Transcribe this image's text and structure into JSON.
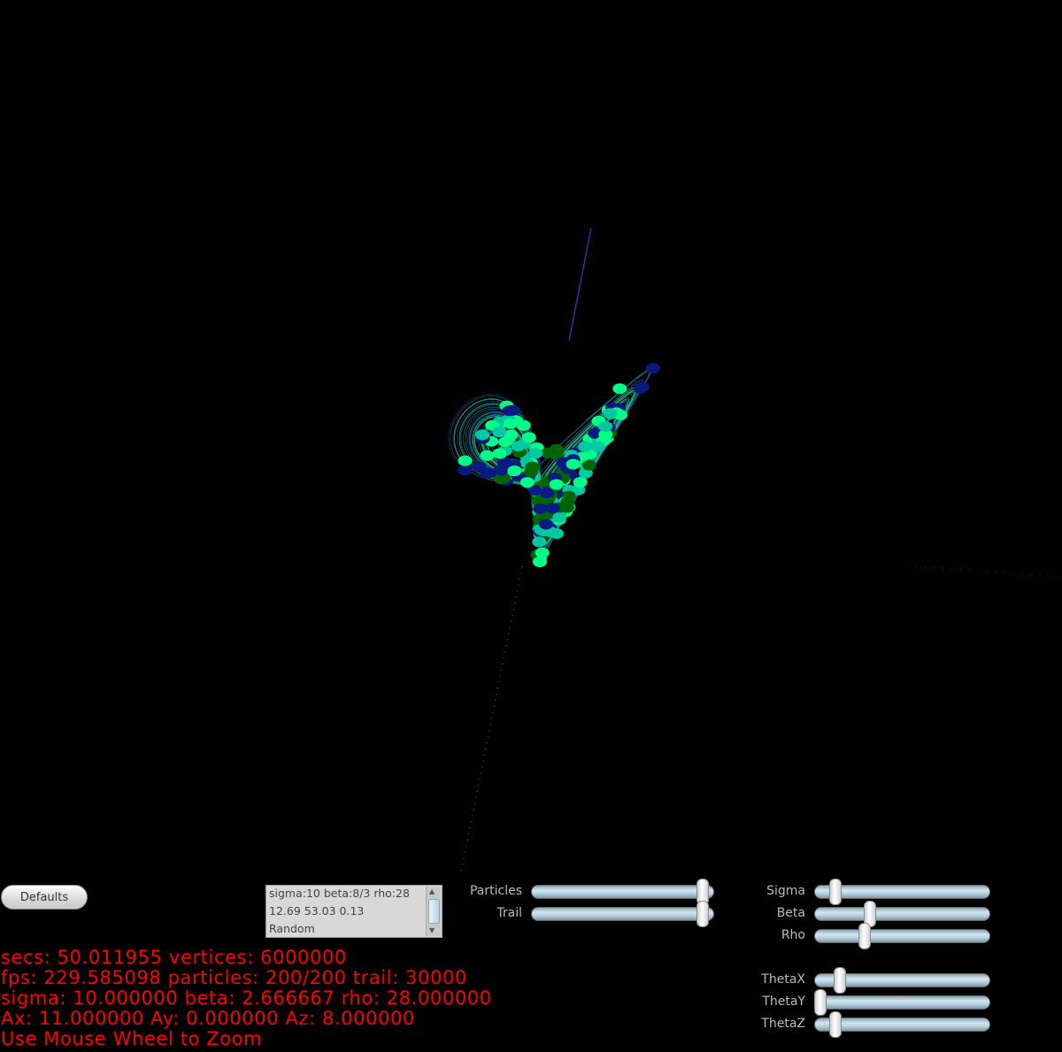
{
  "controls": {
    "defaults_label": "Defaults",
    "presets": [
      "sigma:10 beta:8/3 rho:28",
      "12.69 53.03 0.13",
      "Random"
    ],
    "sliders_left": [
      {
        "label": "Particles",
        "value": 0.97
      },
      {
        "label": "Trail",
        "value": 0.97
      }
    ],
    "sliders_params": [
      {
        "label": "Sigma",
        "value": 0.09
      },
      {
        "label": "Beta",
        "value": 0.3
      },
      {
        "label": "Rho",
        "value": 0.27
      }
    ],
    "sliders_theta": [
      {
        "label": "ThetaX",
        "value": 0.12
      },
      {
        "label": "ThetaY",
        "value": 0.0
      },
      {
        "label": "ThetaZ",
        "value": 0.09
      }
    ]
  },
  "stats": {
    "line1": "secs: 50.011955 vertices: 6000000",
    "line2": "fps: 229.585098 particles: 200/200 trail: 30000",
    "line3": "sigma: 10.000000 beta: 2.666667 rho: 28.000000",
    "line4": "Ax: 11.000000 Ay: 0.000000 Az: 8.000000",
    "line5": "Use Mouse Wheel to Zoom"
  },
  "colors": {
    "background": "#000000",
    "stats_text": "#ff0000",
    "particles": [
      "#00ff88",
      "#00c8a0",
      "#1e90ff",
      "#006400",
      "#00bfbf",
      "#0a1a80",
      "#40e0d0"
    ]
  }
}
